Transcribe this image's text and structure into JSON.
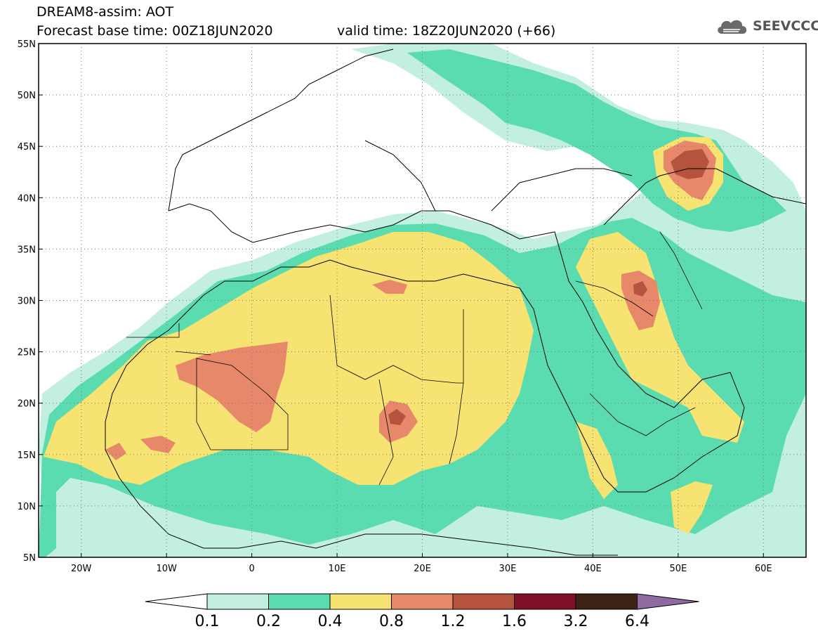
{
  "title": {
    "line1": "DREAM8-assim: AOT",
    "line2": "Forecast base time: 00Z18JUN2020",
    "valid": "valid time: 18Z20JUN2020 (+66)"
  },
  "logo": {
    "icon": "cloud-icon",
    "text": "SEEVCCC"
  },
  "map": {
    "lon_range": [
      -25,
      65
    ],
    "lat_range": [
      5,
      55
    ],
    "lon_ticks": [
      {
        "value": -20,
        "label": "20W"
      },
      {
        "value": -10,
        "label": "10W"
      },
      {
        "value": 0,
        "label": "0"
      },
      {
        "value": 10,
        "label": "10E"
      },
      {
        "value": 20,
        "label": "20E"
      },
      {
        "value": 30,
        "label": "30E"
      },
      {
        "value": 40,
        "label": "40E"
      },
      {
        "value": 50,
        "label": "50E"
      },
      {
        "value": 60,
        "label": "60E"
      }
    ],
    "lat_ticks": [
      {
        "value": 55,
        "label": "55N"
      },
      {
        "value": 50,
        "label": "50N"
      },
      {
        "value": 45,
        "label": "45N"
      },
      {
        "value": 40,
        "label": "40N"
      },
      {
        "value": 35,
        "label": "35N"
      },
      {
        "value": 30,
        "label": "30N"
      },
      {
        "value": 25,
        "label": "25N"
      },
      {
        "value": 20,
        "label": "20N"
      },
      {
        "value": 15,
        "label": "15N"
      },
      {
        "value": 10,
        "label": "10N"
      },
      {
        "value": 5,
        "label": "5N"
      }
    ]
  },
  "colorbar": {
    "levels": [
      "0.1",
      "0.2",
      "0.4",
      "0.8",
      "1.2",
      "1.6",
      "3.2",
      "6.4"
    ],
    "colors": [
      "#ffffff",
      "#c3eee2",
      "#5bdcb0",
      "#f7e371",
      "#e8886a",
      "#b5533f",
      "#7d0f26",
      "#3d2316",
      "#8e6aa0"
    ]
  }
}
